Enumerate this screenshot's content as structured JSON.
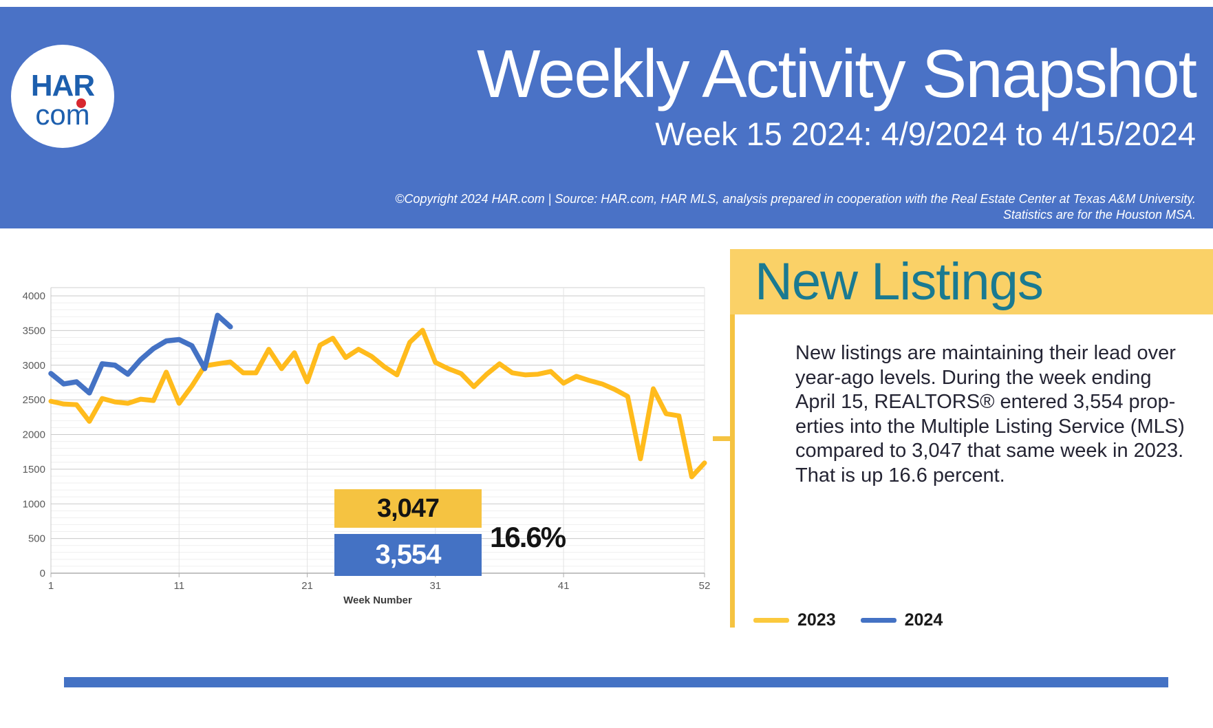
{
  "header": {
    "logo_line1": "HAR",
    "logo_line2": "com",
    "title": "Weekly Activity Snapshot",
    "subtitle": "Week 15 2024: 4/9/2024 to 4/15/2024",
    "copyright_line1": "©Copyright 2024 HAR.com  |  Source: HAR.com, HAR MLS, analysis prepared in cooperation with the Real Estate Center at Texas A&M University.",
    "copyright_line2": "Statistics are for the Houston MSA."
  },
  "chart_data": {
    "type": "line",
    "title": "",
    "xlabel": "Week Number",
    "ylabel": "",
    "x_ticks": [
      1,
      11,
      21,
      31,
      41,
      52
    ],
    "y_ticks": [
      0,
      500,
      1000,
      1500,
      2000,
      2500,
      3000,
      3500,
      4000
    ],
    "ylim": [
      0,
      4000
    ],
    "xlim": [
      1,
      52
    ],
    "grid": "on",
    "legend_position": "bottom-right-panel",
    "x": [
      1,
      2,
      3,
      4,
      5,
      6,
      7,
      8,
      9,
      10,
      11,
      12,
      13,
      14,
      15,
      16,
      17,
      18,
      19,
      20,
      21,
      22,
      23,
      24,
      25,
      26,
      27,
      28,
      29,
      30,
      31,
      32,
      33,
      34,
      35,
      36,
      37,
      38,
      39,
      40,
      41,
      42,
      43,
      44,
      45,
      46,
      47,
      48,
      49,
      50,
      51,
      52
    ],
    "series": [
      {
        "name": "2023",
        "color": "#FFBB1C",
        "values": [
          2480,
          2440,
          2430,
          2190,
          2520,
          2470,
          2450,
          2510,
          2490,
          2900,
          2450,
          2700,
          2990,
          3020,
          3047,
          2890,
          2890,
          3230,
          2950,
          3180,
          2760,
          3290,
          3390,
          3110,
          3230,
          3130,
          2980,
          2860,
          3330,
          3505,
          3040,
          2950,
          2880,
          2690,
          2870,
          3020,
          2890,
          2860,
          2870,
          2910,
          2740,
          2840,
          2780,
          2730,
          2650,
          2550,
          1650,
          2660,
          2300,
          2270,
          1390,
          1590
        ]
      },
      {
        "name": "2024",
        "color": "#4472C4",
        "values": [
          2880,
          2730,
          2760,
          2600,
          3020,
          3000,
          2870,
          3080,
          3240,
          3350,
          3370,
          3280,
          2950,
          3720,
          3554
        ]
      }
    ],
    "callouts": {
      "value_2023": "3,047",
      "value_2024": "3,554",
      "pct_change": "16.6%"
    }
  },
  "panel": {
    "heading": "New Listings",
    "paragraph_lines": [
      "New listings are maintaining their lead over",
      "year-ago levels. During the week ending",
      "April 15, REALTORS® entered 3,554 prop-",
      "erties into the Multiple Listing Service (MLS)",
      "compared to 3,047 that same week in 2023.",
      "That is up 16.6 percent."
    ]
  },
  "legend": [
    {
      "label": "2023",
      "color": "#FBC93D"
    },
    {
      "label": "2024",
      "color": "#4472C4"
    }
  ],
  "colors": {
    "header_band": "#4A72C6",
    "bottom_bar": "#4472C4",
    "panel_band": "#FAD167",
    "panel_heading": "#1A7A91",
    "logo_blue": "#1D5FAE",
    "logo_red": "#D7282F",
    "gridline_major": "#C9C9C9",
    "gridline_minor": "#EFEFEF",
    "tick_text": "#595959"
  }
}
